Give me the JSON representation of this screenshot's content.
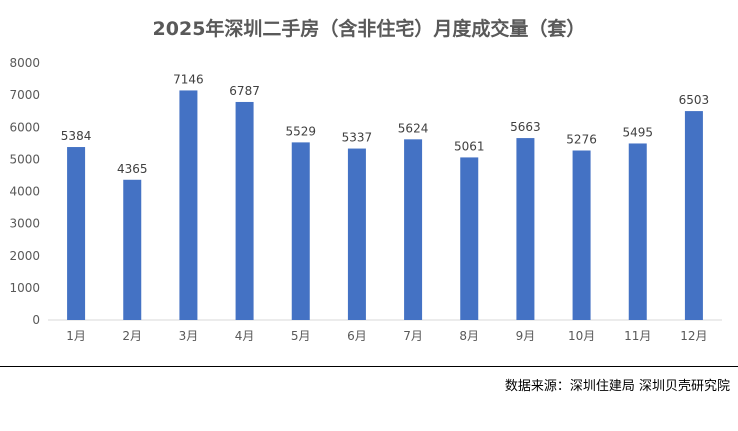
{
  "chart_data": {
    "type": "bar",
    "title": "2025年深圳二手房（含非住宅）月度成交量（套）",
    "categories": [
      "1月",
      "2月",
      "3月",
      "4月",
      "5月",
      "6月",
      "7月",
      "8月",
      "9月",
      "10月",
      "11月",
      "12月"
    ],
    "values": [
      5384,
      4365,
      7146,
      6787,
      5529,
      5337,
      5624,
      5061,
      5663,
      5276,
      5495,
      6503
    ],
    "ylim": [
      0,
      8000
    ],
    "yticks": [
      0,
      1000,
      2000,
      3000,
      4000,
      5000,
      6000,
      7000,
      8000
    ],
    "grid": false,
    "bar_color": "#4472C4",
    "text_color": "#595959"
  },
  "footer": {
    "source": "数据来源：深圳住建局    深圳贝壳研究院"
  }
}
